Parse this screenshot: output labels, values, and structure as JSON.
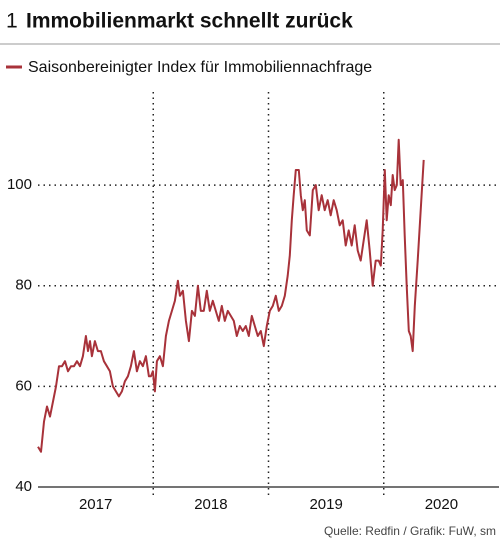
{
  "chart_data": {
    "type": "line",
    "figure_number": "1",
    "title": "Immobilienmarkt schnellt zurück",
    "source": "Quelle: Redfin / Grafik: FuW, sm",
    "series": [
      {
        "name": "Saisonbereinigter Index für Immobiliennachfrage",
        "color": "#a8323a",
        "x": [
          2017.0,
          2017.026,
          2017.052,
          2017.078,
          2017.104,
          2017.13,
          2017.156,
          2017.182,
          2017.208,
          2017.234,
          2017.26,
          2017.286,
          2017.312,
          2017.338,
          2017.364,
          2017.39,
          2017.416,
          2017.434,
          2017.451,
          2017.468,
          2017.494,
          2017.52,
          2017.546,
          2017.572,
          2017.598,
          2017.624,
          2017.65,
          2017.676,
          2017.702,
          2017.728,
          2017.754,
          2017.78,
          2017.806,
          2017.832,
          2017.858,
          2017.884,
          2017.91,
          2017.936,
          2017.962,
          2017.98,
          2017.997,
          2018.014,
          2018.032,
          2018.058,
          2018.084,
          2018.11,
          2018.136,
          2018.162,
          2018.188,
          2018.214,
          2018.231,
          2018.257,
          2018.283,
          2018.309,
          2018.335,
          2018.361,
          2018.387,
          2018.413,
          2018.439,
          2018.465,
          2018.491,
          2018.517,
          2018.543,
          2018.569,
          2018.595,
          2018.621,
          2018.647,
          2018.673,
          2018.699,
          2018.725,
          2018.751,
          2018.777,
          2018.803,
          2018.829,
          2018.855,
          2018.881,
          2018.907,
          2018.933,
          2018.959,
          2018.985,
          2019.011,
          2019.037,
          2019.063,
          2019.089,
          2019.115,
          2019.141,
          2019.167,
          2019.185,
          2019.202,
          2019.219,
          2019.237,
          2019.263,
          2019.28,
          2019.298,
          2019.315,
          2019.332,
          2019.358,
          2019.384,
          2019.41,
          2019.436,
          2019.462,
          2019.488,
          2019.514,
          2019.54,
          2019.566,
          2019.592,
          2019.618,
          2019.644,
          2019.67,
          2019.696,
          2019.722,
          2019.748,
          2019.774,
          2019.8,
          2019.826,
          2019.852,
          2019.878,
          2019.904,
          2019.93,
          2019.956,
          2019.974,
          2019.991,
          2020.009,
          2020.026,
          2020.043,
          2020.061,
          2020.078,
          2020.095,
          2020.113,
          2020.13,
          2020.147,
          2020.165,
          2020.182,
          2020.199,
          2020.217,
          2020.234,
          2020.251,
          2020.269,
          2020.295,
          2020.321,
          2020.347
        ],
        "values": [
          48,
          47,
          53,
          56,
          54,
          57,
          60,
          64,
          64,
          65,
          63,
          64,
          64,
          65,
          64,
          66,
          70,
          67,
          69,
          66,
          69,
          67,
          67,
          65,
          64,
          63,
          60,
          59,
          58,
          59,
          61,
          62,
          64,
          67,
          63,
          65,
          64,
          66,
          62,
          62,
          63,
          59,
          65,
          66,
          64,
          70,
          73,
          75,
          77,
          81,
          78,
          79,
          73,
          69,
          75,
          74,
          80,
          75,
          75,
          79,
          75,
          77,
          75,
          73,
          76,
          73,
          75,
          74,
          73,
          70,
          72,
          71,
          72,
          70,
          74,
          72,
          70,
          71,
          68,
          72,
          75,
          76,
          78,
          75,
          76,
          78,
          82,
          86,
          93,
          98,
          103,
          103,
          98,
          95,
          97,
          91,
          90,
          99,
          100,
          95,
          98,
          95,
          97,
          94,
          97,
          95,
          92,
          93,
          88,
          91,
          88,
          92,
          87,
          85,
          89,
          93,
          87,
          80,
          85,
          85,
          84,
          91,
          103,
          93,
          98,
          96,
          102,
          99,
          100,
          109,
          100,
          101,
          90,
          80,
          71,
          70,
          67,
          76,
          85,
          95,
          105
        ]
      }
    ],
    "xlim": [
      2017,
      2021
    ],
    "xticks": [
      {
        "value": 2017.5,
        "label": "2017"
      },
      {
        "value": 2018.5,
        "label": "2018"
      },
      {
        "value": 2019.5,
        "label": "2019"
      },
      {
        "value": 2020.5,
        "label": "2020"
      }
    ],
    "xgrid": [
      2018,
      2019,
      2020
    ],
    "ylim": [
      40,
      118.5
    ],
    "yticks": [
      40,
      60,
      80,
      100
    ],
    "grid": true
  }
}
